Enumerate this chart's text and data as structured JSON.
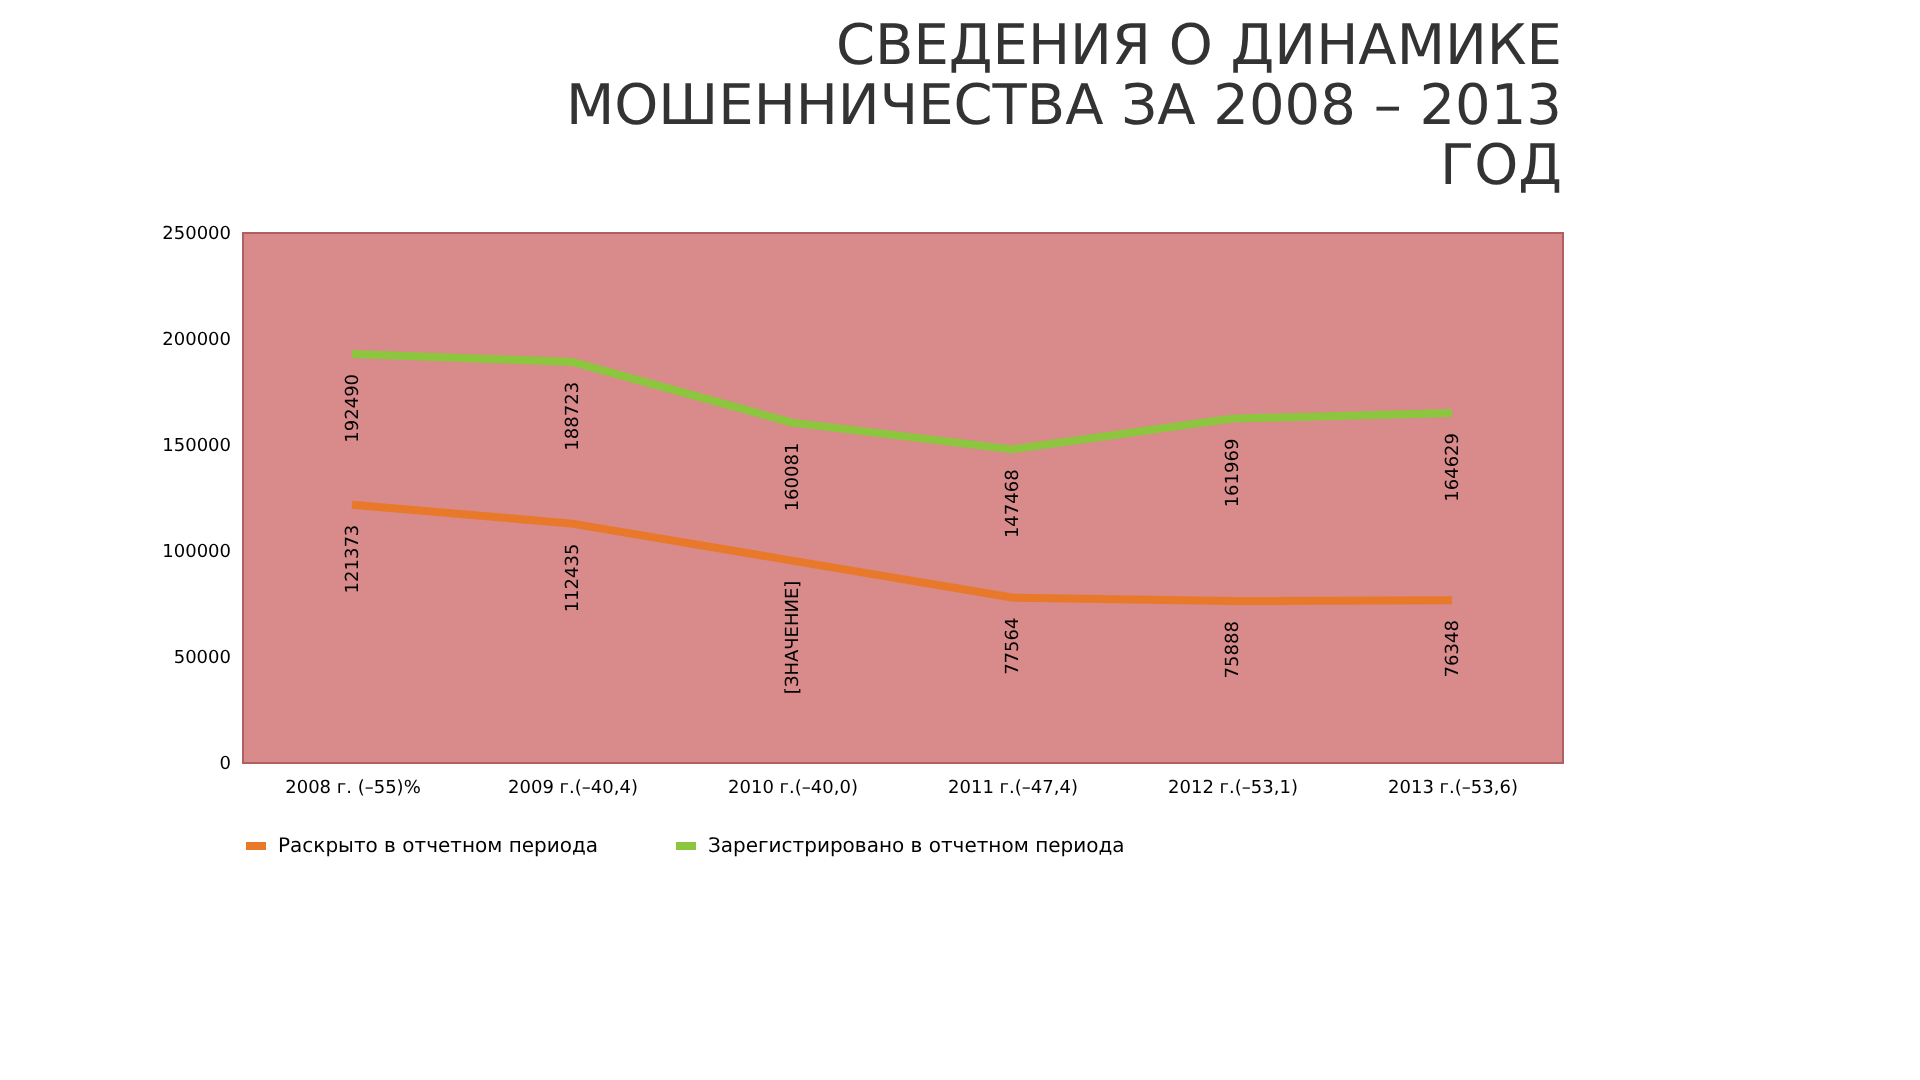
{
  "chart_data": {
    "type": "line",
    "title": [
      "СВЕДЕНИЯ О ДИНАМИКЕ",
      "МОШЕННИЧЕСТВА  ЗА 2008 – 2013",
      "ГОД"
    ],
    "categories": [
      "2008 г. (–55)%",
      "2009 г.(–40,4)",
      "2010 г.(–40,0)",
      "2011 г.(–47,4)",
      "2012 г.(–53,1)",
      "2013 г.(–53,6)"
    ],
    "series": [
      {
        "name": "Раскрыто в отчетном периода",
        "color": "#e8792a",
        "values": [
          121373,
          112435,
          95000,
          77564,
          75888,
          76348
        ],
        "value_labels": [
          "121373",
          "112435",
          "[ЗНАЧЕНИЕ]",
          "77564",
          "75888",
          "76348"
        ]
      },
      {
        "name": "Зарегистрировано в отчетном периода",
        "color": "#8cc63f",
        "values": [
          192490,
          188723,
          160081,
          147468,
          161969,
          164629
        ],
        "value_labels": [
          "192490",
          "188723",
          "160081",
          "147468",
          "161969",
          "164629"
        ]
      }
    ],
    "ylim": [
      0,
      250000
    ],
    "yticks": [
      0,
      50000,
      100000,
      150000,
      200000,
      250000
    ],
    "grid": false,
    "legend": "bottom",
    "marker": "none",
    "line_style": "solid"
  }
}
